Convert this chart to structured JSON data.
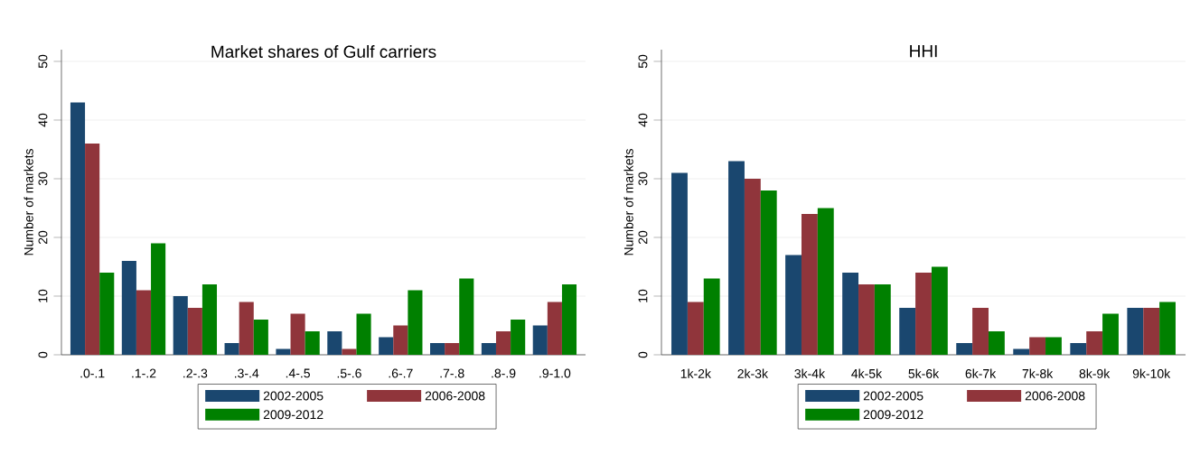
{
  "chart_data": [
    {
      "type": "bar",
      "title": "Market shares of Gulf carriers",
      "ylabel": "Number of markets",
      "categories": [
        ".0-.1",
        ".1-.2",
        ".2-.3",
        ".3-.4",
        ".4-.5",
        ".5-.6",
        ".6-.7",
        ".7-.8",
        ".8-.9",
        ".9-1.0"
      ],
      "series": [
        {
          "name": "2002-2005",
          "color": "#1a476f",
          "values": [
            43,
            16,
            10,
            2,
            1,
            4,
            3,
            2,
            2,
            5
          ]
        },
        {
          "name": "2006-2008",
          "color": "#90353b",
          "values": [
            36,
            11,
            8,
            9,
            7,
            1,
            5,
            2,
            4,
            9
          ]
        },
        {
          "name": "2009-2012",
          "color": "#008000",
          "values": [
            14,
            19,
            12,
            6,
            4,
            7,
            11,
            13,
            6,
            12
          ]
        }
      ],
      "ylim": [
        0,
        52
      ],
      "yticks": [
        0,
        10,
        20,
        30,
        40,
        50
      ],
      "grid": "y",
      "legend": "bottom"
    },
    {
      "type": "bar",
      "title": "HHI",
      "ylabel": "Number of markets",
      "categories": [
        "1k-2k",
        "2k-3k",
        "3k-4k",
        "4k-5k",
        "5k-6k",
        "6k-7k",
        "7k-8k",
        "8k-9k",
        "9k-10k"
      ],
      "series": [
        {
          "name": "2002-2005",
          "color": "#1a476f",
          "values": [
            31,
            33,
            17,
            14,
            8,
            2,
            1,
            2,
            8
          ]
        },
        {
          "name": "2006-2008",
          "color": "#90353b",
          "values": [
            9,
            30,
            24,
            12,
            14,
            8,
            3,
            4,
            8
          ]
        },
        {
          "name": "2009-2012",
          "color": "#008000",
          "values": [
            13,
            28,
            25,
            12,
            15,
            4,
            3,
            7,
            9
          ]
        }
      ],
      "ylim": [
        0,
        52
      ],
      "yticks": [
        0,
        10,
        20,
        30,
        40,
        50
      ],
      "grid": "y",
      "legend": "bottom"
    }
  ]
}
